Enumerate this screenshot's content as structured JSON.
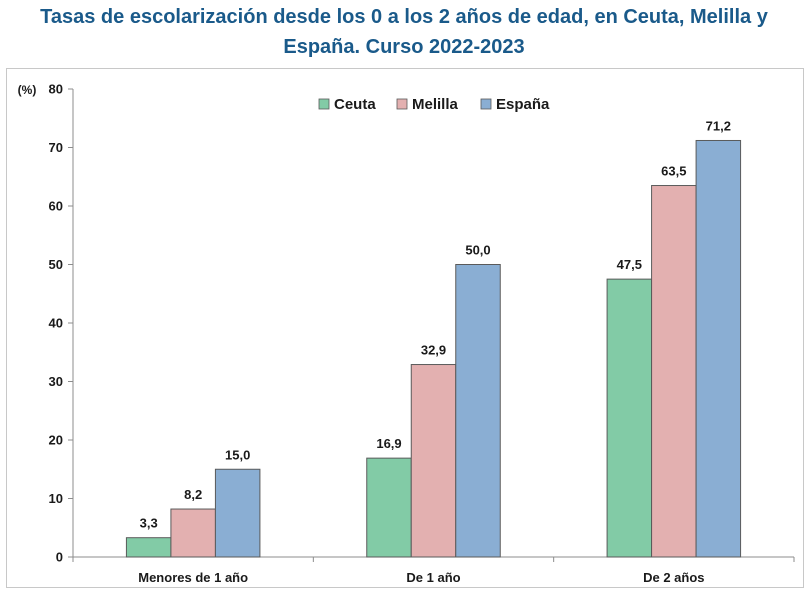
{
  "title": {
    "line1": "Tasas de escolarización desde los 0 a los 2 años de edad, en Ceuta, Melilla y",
    "line2": "España. Curso 2022-2023"
  },
  "chart_data": {
    "type": "bar",
    "title": "Tasas de escolarización desde los 0 a los 2 años de edad, en Ceuta, Melilla y España. Curso 2022-2023",
    "ylabel": "(%)",
    "xlabel": "",
    "ylim": [
      0,
      80
    ],
    "yticks": [
      0,
      10,
      20,
      30,
      40,
      50,
      60,
      70,
      80
    ],
    "grid": false,
    "legend": "top-center",
    "categories": [
      "Menores de 1 año",
      "De 1 año",
      "De 2 años"
    ],
    "series": [
      {
        "name": "Ceuta",
        "color": "#82cba6",
        "values": [
          3.3,
          16.9,
          47.5
        ],
        "labels": [
          "3,3",
          "16,9",
          "47,5"
        ]
      },
      {
        "name": "Melilla",
        "color": "#e3b0b0",
        "values": [
          8.2,
          32.9,
          63.5
        ],
        "labels": [
          "8,2",
          "32,9",
          "63,5"
        ]
      },
      {
        "name": "España",
        "color": "#8aaed3",
        "values": [
          15.0,
          50.0,
          71.2
        ],
        "labels": [
          "15,0",
          "50,0",
          "71,2"
        ]
      }
    ]
  }
}
